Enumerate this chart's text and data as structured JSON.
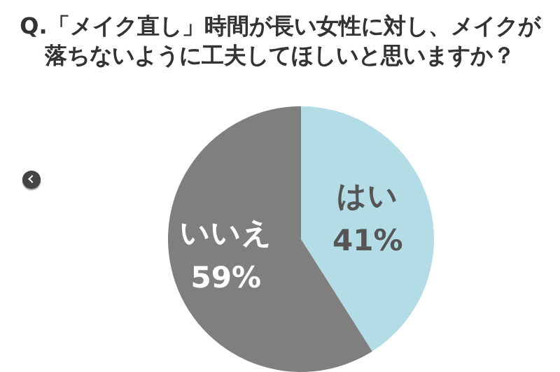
{
  "chart_data": {
    "type": "pie",
    "title": "Q.「メイク直し」時間が長い女性に対し、メイクが落ちないように工夫してほしいと思いますか？",
    "categories": [
      "はい",
      "いいえ"
    ],
    "values": [
      41,
      59
    ],
    "value_labels": [
      "41%",
      "59%"
    ],
    "colors": [
      "#b3dce6",
      "#7f7f7f"
    ],
    "legend": false
  }
}
